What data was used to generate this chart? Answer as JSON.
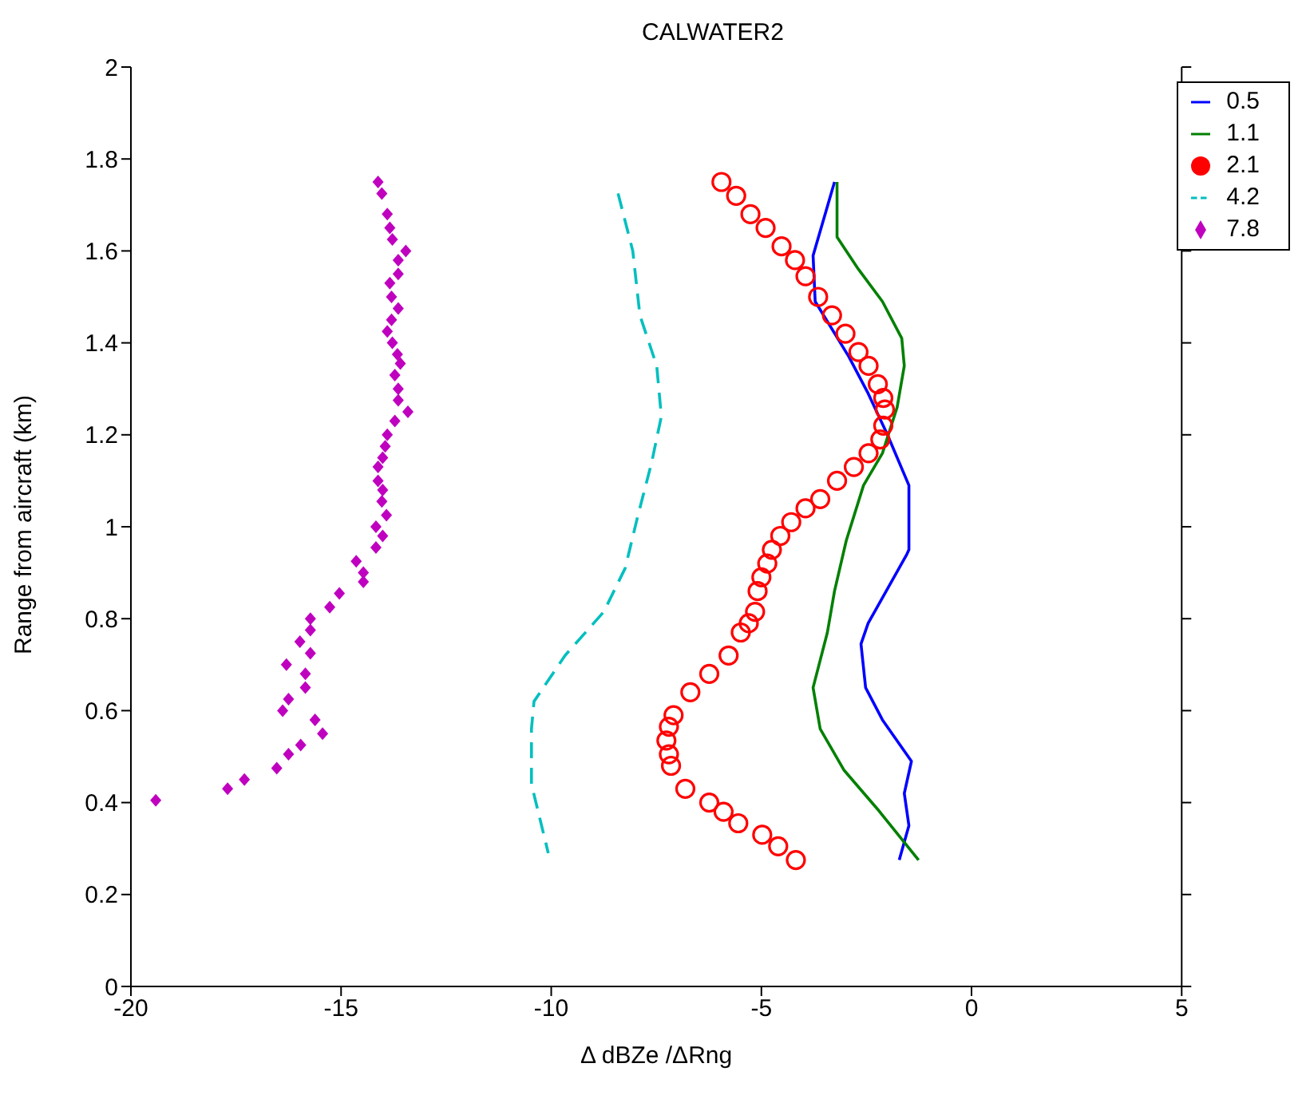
{
  "chart_data": {
    "type": "line",
    "title": "CALWATER2",
    "xlabel": "Δ dBZe /ΔRng",
    "ylabel": "Range from aircraft (km)",
    "xlim": [
      -20,
      5
    ],
    "xticks": [
      -20,
      -15,
      -10,
      -5,
      0,
      5
    ],
    "ylim": [
      0,
      2
    ],
    "yticks": [
      0,
      0.2,
      0.4,
      0.6,
      0.8,
      1,
      1.2,
      1.4,
      1.6,
      1.8,
      2
    ],
    "legend": "top right",
    "series": [
      {
        "name": "0.5",
        "line_style": "solid",
        "color": "#0000ff",
        "x": [
          -3.26,
          -3.77,
          -3.72,
          -2.92,
          -2.46,
          -2.0,
          -1.49,
          -1.49,
          -1.54,
          -2.46,
          -2.63,
          -2.52,
          -2.12,
          -1.43,
          -1.6,
          -1.49,
          -1.72
        ],
        "values": [
          1.75,
          1.59,
          1.49,
          1.37,
          1.29,
          1.2,
          1.09,
          0.95,
          0.94,
          0.79,
          0.745,
          0.65,
          0.58,
          0.49,
          0.42,
          0.35,
          0.275
        ]
      },
      {
        "name": "1.1",
        "line_style": "solid",
        "color": "#008000",
        "x": [
          -3.2,
          -3.2,
          -2.69,
          -2.12,
          -1.66,
          -1.6,
          -1.77,
          -2.12,
          -2.57,
          -2.98,
          -3.26,
          -3.43,
          -3.77,
          -3.6,
          -3.03,
          -2.23,
          -1.26
        ],
        "values": [
          1.75,
          1.63,
          1.56,
          1.49,
          1.41,
          1.35,
          1.26,
          1.16,
          1.09,
          0.97,
          0.86,
          0.77,
          0.65,
          0.56,
          0.47,
          0.385,
          0.275
        ]
      },
      {
        "name": "2.1",
        "type": "scatter",
        "marker": "circle",
        "color": "#ff0000",
        "x": [
          -5.95,
          -5.6,
          -5.26,
          -4.9,
          -4.52,
          -4.2,
          -3.95,
          -3.65,
          -3.32,
          -3.0,
          -2.69,
          -2.45,
          -2.23,
          -2.1,
          -2.06,
          -2.1,
          -2.17,
          -2.45,
          -2.8,
          -3.2,
          -3.6,
          -3.95,
          -4.29,
          -4.55,
          -4.75,
          -4.86,
          -5.0,
          -5.09,
          -5.15,
          -5.3,
          -5.49,
          -5.78,
          -6.24,
          -6.69,
          -7.09,
          -7.2,
          -7.26,
          -7.2,
          -7.15,
          -6.81,
          -6.24,
          -5.9,
          -5.55,
          -4.98,
          -4.6,
          -4.18
        ],
        "values": [
          1.75,
          1.72,
          1.68,
          1.65,
          1.61,
          1.58,
          1.545,
          1.5,
          1.46,
          1.42,
          1.38,
          1.35,
          1.31,
          1.28,
          1.255,
          1.22,
          1.19,
          1.16,
          1.13,
          1.1,
          1.06,
          1.04,
          1.01,
          0.98,
          0.95,
          0.92,
          0.89,
          0.86,
          0.815,
          0.79,
          0.77,
          0.72,
          0.68,
          0.64,
          0.59,
          0.565,
          0.535,
          0.505,
          0.48,
          0.43,
          0.4,
          0.38,
          0.355,
          0.33,
          0.305,
          0.275
        ]
      },
      {
        "name": "4.2",
        "line_style": "dashed",
        "color": "#00bfbf",
        "x": [
          -8.41,
          -8.06,
          -7.89,
          -7.49,
          -7.38,
          -7.61,
          -7.95,
          -8.24,
          -8.75,
          -9.67,
          -10.41,
          -10.47,
          -10.47,
          -10.07
        ],
        "values": [
          1.725,
          1.6,
          1.46,
          1.35,
          1.24,
          1.14,
          1.02,
          0.91,
          0.815,
          0.72,
          0.62,
          0.56,
          0.44,
          0.29
        ]
      },
      {
        "name": "7.8",
        "type": "scatter",
        "marker": "diamond",
        "color": "#bf00bf",
        "x": [
          -14.12,
          -14.03,
          -13.9,
          -13.84,
          -13.78,
          -13.46,
          -13.64,
          -13.64,
          -13.84,
          -13.8,
          -13.64,
          -13.8,
          -13.9,
          -13.78,
          -13.66,
          -13.59,
          -13.72,
          -13.64,
          -13.64,
          -13.41,
          -13.72,
          -13.9,
          -13.95,
          -14.01,
          -14.12,
          -14.12,
          -14.01,
          -14.03,
          -13.92,
          -14.17,
          -14.01,
          -14.17,
          -14.64,
          -14.47,
          -14.47,
          -15.04,
          -15.27,
          -15.73,
          -15.73,
          -15.98,
          -15.73,
          -16.3,
          -15.85,
          -15.85,
          -16.25,
          -16.39,
          -15.62,
          -15.44,
          -15.96,
          -16.25,
          -16.53,
          -17.3,
          -17.7,
          -19.41
        ],
        "values": [
          1.75,
          1.725,
          1.68,
          1.65,
          1.625,
          1.6,
          1.58,
          1.55,
          1.53,
          1.5,
          1.475,
          1.45,
          1.425,
          1.4,
          1.375,
          1.355,
          1.33,
          1.3,
          1.275,
          1.25,
          1.23,
          1.2,
          1.175,
          1.15,
          1.13,
          1.1,
          1.08,
          1.055,
          1.025,
          1.0,
          0.98,
          0.955,
          0.925,
          0.9,
          0.88,
          0.855,
          0.825,
          0.8,
          0.775,
          0.75,
          0.725,
          0.7,
          0.68,
          0.65,
          0.625,
          0.6,
          0.58,
          0.55,
          0.525,
          0.505,
          0.475,
          0.45,
          0.43,
          0.405
        ]
      }
    ]
  }
}
